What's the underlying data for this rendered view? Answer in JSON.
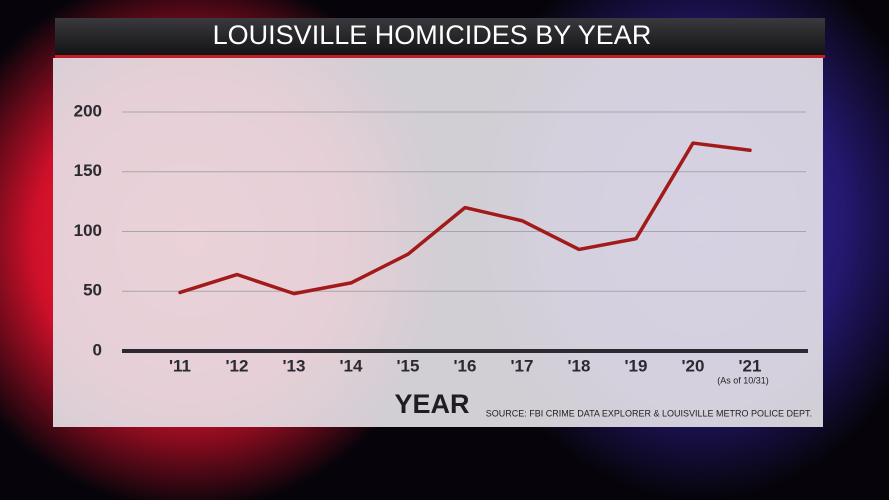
{
  "chart_data": {
    "type": "line",
    "title": "LOUISVILLE HOMICIDES BY YEAR",
    "x_label": "YEAR",
    "source": "SOURCE: FBI CRIME DATA EXPLORER & LOUISVILLE METRO POLICE DEPT.",
    "annotation": "(As of 10/31)",
    "categories": [
      "'11",
      "'12",
      "'13",
      "'14",
      "'15",
      "'16",
      "'17",
      "'18",
      "'19",
      "'20",
      "'21"
    ],
    "series": [
      {
        "name": "Homicides",
        "color": "#a31a1a",
        "values": [
          49,
          64,
          48,
          57,
          81,
          120,
          109,
          85,
          94,
          174,
          168
        ]
      }
    ],
    "ylim": [
      0,
      200
    ],
    "yticks": [
      0,
      50,
      100,
      150,
      200
    ],
    "grid": true
  }
}
